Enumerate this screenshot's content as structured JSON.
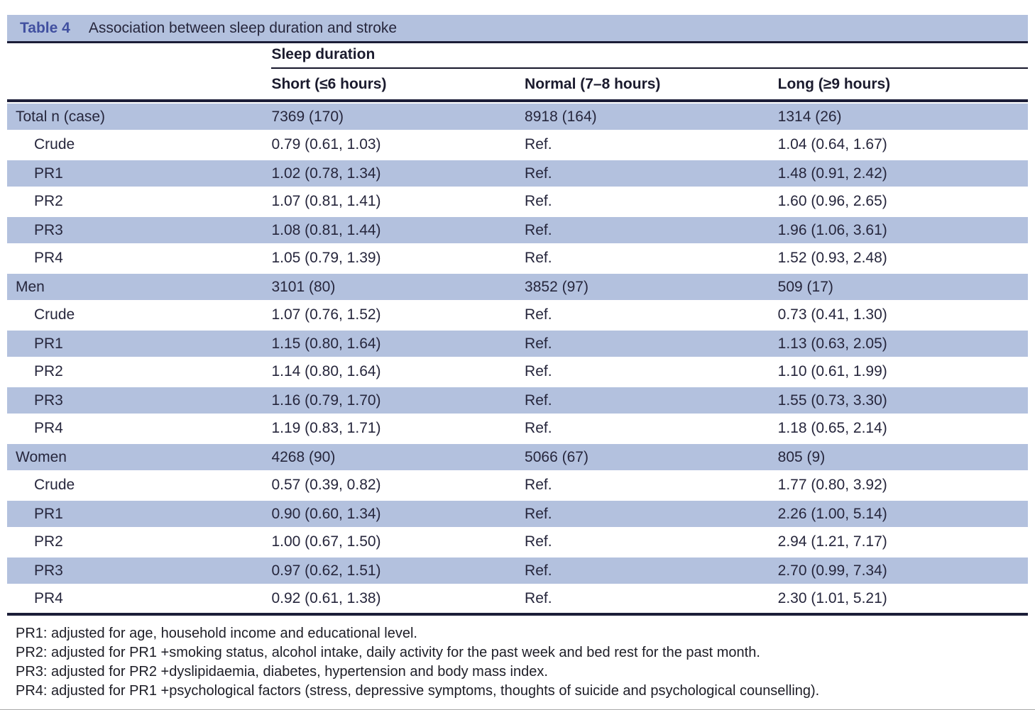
{
  "table": {
    "label": "Table 4",
    "title": "Association between sleep duration and stroke",
    "group_header": "Sleep duration",
    "columns": [
      "Short (≤6 hours)",
      "Normal (7–8 hours)",
      "Long (≥9 hours)"
    ],
    "rows": [
      {
        "label": "Total n (case)",
        "indent": false,
        "values": [
          "7369 (170)",
          "8918 (164)",
          "1314 (26)"
        ]
      },
      {
        "label": "Crude",
        "indent": true,
        "values": [
          "0.79 (0.61, 1.03)",
          "Ref.",
          "1.04 (0.64, 1.67)"
        ]
      },
      {
        "label": "PR1",
        "indent": true,
        "values": [
          "1.02 (0.78, 1.34)",
          "Ref.",
          "1.48 (0.91, 2.42)"
        ]
      },
      {
        "label": "PR2",
        "indent": true,
        "values": [
          "1.07 (0.81, 1.41)",
          "Ref.",
          "1.60 (0.96, 2.65)"
        ]
      },
      {
        "label": "PR3",
        "indent": true,
        "values": [
          "1.08 (0.81, 1.44)",
          "Ref.",
          "1.96 (1.06, 3.61)"
        ]
      },
      {
        "label": "PR4",
        "indent": true,
        "values": [
          "1.05 (0.79, 1.39)",
          "Ref.",
          "1.52 (0.93, 2.48)"
        ]
      },
      {
        "label": "Men",
        "indent": false,
        "values": [
          "3101 (80)",
          "3852 (97)",
          "509 (17)"
        ]
      },
      {
        "label": "Crude",
        "indent": true,
        "values": [
          "1.07 (0.76, 1.52)",
          "Ref.",
          "0.73 (0.41, 1.30)"
        ]
      },
      {
        "label": "PR1",
        "indent": true,
        "values": [
          "1.15 (0.80, 1.64)",
          "Ref.",
          "1.13 (0.63, 2.05)"
        ]
      },
      {
        "label": "PR2",
        "indent": true,
        "values": [
          "1.14 (0.80, 1.64)",
          "Ref.",
          "1.10 (0.61, 1.99)"
        ]
      },
      {
        "label": "PR3",
        "indent": true,
        "values": [
          "1.16 (0.79, 1.70)",
          "Ref.",
          "1.55 (0.73, 3.30)"
        ]
      },
      {
        "label": "PR4",
        "indent": true,
        "values": [
          "1.19 (0.83, 1.71)",
          "Ref.",
          "1.18 (0.65, 2.14)"
        ]
      },
      {
        "label": "Women",
        "indent": false,
        "values": [
          "4268 (90)",
          "5066 (67)",
          "805 (9)"
        ]
      },
      {
        "label": "Crude",
        "indent": true,
        "values": [
          "0.57 (0.39, 0.82)",
          "Ref.",
          "1.77 (0.80, 3.92)"
        ]
      },
      {
        "label": "PR1",
        "indent": true,
        "values": [
          "0.90 (0.60, 1.34)",
          "Ref.",
          "2.26 (1.00, 5.14)"
        ]
      },
      {
        "label": "PR2",
        "indent": true,
        "values": [
          "1.00 (0.67, 1.50)",
          "Ref.",
          "2.94 (1.21, 7.17)"
        ]
      },
      {
        "label": "PR3",
        "indent": true,
        "values": [
          "0.97 (0.62, 1.51)",
          "Ref.",
          "2.70 (0.99, 7.34)"
        ]
      },
      {
        "label": "PR4",
        "indent": true,
        "values": [
          "0.92 (0.61, 1.38)",
          "Ref.",
          "2.30 (1.01, 5.21)"
        ]
      }
    ],
    "footnotes": [
      "PR1: adjusted for age, household income and educational level.",
      "PR2: adjusted for PR1 +smoking status, alcohol intake, daily activity for the past week and bed rest for the past month.",
      "PR3: adjusted for PR2 +dyslipidaemia, diabetes, hypertension and body mass index.",
      "PR4: adjusted for PR1 +psychological factors (stress, depressive symptoms, thoughts of suicide and psychological counselling)."
    ]
  },
  "colors": {
    "stripe_blue": "#b3c1de",
    "rule_navy": "#1c1e38",
    "table_label_blue": "#4150a0",
    "text": "#26263c"
  }
}
